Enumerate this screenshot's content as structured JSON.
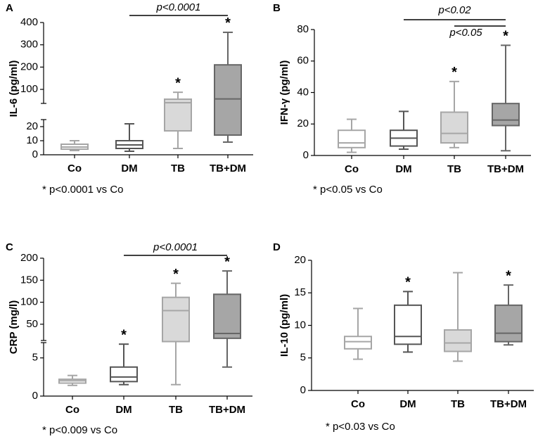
{
  "chart_data": [
    {
      "type": "box",
      "panel": "A",
      "ylabel": "IL-6 (pg/ml)",
      "categories": [
        "Co",
        "DM",
        "TB",
        "TB+DM"
      ],
      "segments": [
        {
          "ylim": [
            0,
            25
          ],
          "yticks": [
            0,
            10,
            20
          ]
        },
        {
          "ylim": [
            37,
            400
          ],
          "yticks": [
            100,
            200,
            300,
            400
          ]
        }
      ],
      "boxes": [
        {
          "whislo": 3,
          "q1": 4,
          "med": 5.5,
          "q3": 7.5,
          "whishi": 10,
          "fill": "#ffffff",
          "stroke": "#a6a6a6"
        },
        {
          "whislo": 2.5,
          "q1": 4.5,
          "med": 7,
          "q3": 10,
          "whishi": 22,
          "fill": "#ffffff",
          "stroke": "#555555"
        },
        {
          "whislo": 4.5,
          "q1": 17,
          "med": 40,
          "q3": 56,
          "whishi": 87,
          "fill": "#d9d9d9",
          "stroke": "#a6a6a6"
        },
        {
          "whislo": 9,
          "q1": 14,
          "med": 57,
          "q3": 210,
          "whishi": 356,
          "fill": "#a6a6a6",
          "stroke": "#666666"
        }
      ],
      "annotations": [
        {
          "text": "*",
          "category": 2
        },
        {
          "text": "*",
          "category": 3
        }
      ],
      "brackets": [
        {
          "text": "p<0.0001",
          "from": 1,
          "to": 3
        }
      ],
      "footnote": "* p<0.0001 vs Co"
    },
    {
      "type": "box",
      "panel": "B",
      "ylabel": "IFN-γ (pg/ml)",
      "categories": [
        "Co",
        "DM",
        "TB",
        "TB+DM"
      ],
      "ylim": [
        0,
        80
      ],
      "yticks": [
        0,
        20,
        40,
        60,
        80
      ],
      "boxes": [
        {
          "whislo": 2,
          "q1": 5,
          "med": 8,
          "q3": 16,
          "whishi": 23,
          "fill": "#ffffff",
          "stroke": "#a6a6a6"
        },
        {
          "whislo": 4,
          "q1": 6,
          "med": 11,
          "q3": 16,
          "whishi": 28,
          "fill": "#ffffff",
          "stroke": "#555555"
        },
        {
          "whislo": 5,
          "q1": 8,
          "med": 14,
          "q3": 27.5,
          "whishi": 47,
          "fill": "#d9d9d9",
          "stroke": "#a6a6a6"
        },
        {
          "whislo": 3,
          "q1": 19,
          "med": 22.5,
          "q3": 33,
          "whishi": 70,
          "fill": "#a6a6a6",
          "stroke": "#666666"
        }
      ],
      "annotations": [
        {
          "text": "*",
          "category": 2
        },
        {
          "text": "*",
          "category": 3
        }
      ],
      "brackets": [
        {
          "text": "p<0.02",
          "from": 1,
          "to": 3
        },
        {
          "text": "p<0.05",
          "from": 2,
          "to": 3
        }
      ],
      "footnote": "* p<0.05 vs Co"
    },
    {
      "type": "box",
      "panel": "C",
      "ylabel": "CRP (mg/l)",
      "categories": [
        "Co",
        "DM",
        "TB",
        "TB+DM"
      ],
      "segments": [
        {
          "ylim": [
            0,
            7
          ],
          "yticks": [
            0,
            5
          ]
        },
        {
          "ylim": [
            13,
            200
          ],
          "yticks": [
            50,
            100,
            150,
            200
          ]
        }
      ],
      "boxes": [
        {
          "whislo": 1.4,
          "q1": 1.7,
          "med": 2,
          "q3": 2.2,
          "whishi": 2.7,
          "fill": "#ffffff",
          "stroke": "#a6a6a6"
        },
        {
          "whislo": 1.5,
          "q1": 1.9,
          "med": 2.5,
          "q3": 3.8,
          "whishi": 6.8,
          "fill": "#ffffff",
          "stroke": "#555555"
        },
        {
          "whislo": 1.5,
          "q1": 10,
          "med": 81,
          "q3": 111,
          "whishi": 143,
          "fill": "#d9d9d9",
          "stroke": "#a6a6a6"
        },
        {
          "whislo": 3.8,
          "q1": 18,
          "med": 29,
          "q3": 118,
          "whishi": 171,
          "fill": "#a6a6a6",
          "stroke": "#666666"
        }
      ],
      "annotations": [
        {
          "text": "*",
          "category": 1
        },
        {
          "text": "*",
          "category": 2
        },
        {
          "text": "*",
          "category": 3
        }
      ],
      "brackets": [
        {
          "text": "p<0.0001",
          "from": 1,
          "to": 3
        }
      ],
      "footnote": "* p<0.009 vs Co"
    },
    {
      "type": "box",
      "panel": "D",
      "ylabel": "IL-10 (pg/ml)",
      "categories": [
        "Co",
        "DM",
        "TB",
        "TB+DM"
      ],
      "ylim": [
        0,
        20
      ],
      "yticks": [
        0,
        5,
        10,
        15,
        20
      ],
      "boxes": [
        {
          "whislo": 4.8,
          "q1": 6.4,
          "med": 7.5,
          "q3": 8.3,
          "whishi": 12.6,
          "fill": "#ffffff",
          "stroke": "#a6a6a6"
        },
        {
          "whislo": 5.9,
          "q1": 7.1,
          "med": 8.3,
          "q3": 13.1,
          "whishi": 15.2,
          "fill": "#ffffff",
          "stroke": "#555555"
        },
        {
          "whislo": 4.5,
          "q1": 6.0,
          "med": 7.3,
          "q3": 9.3,
          "whishi": 18.1,
          "fill": "#d9d9d9",
          "stroke": "#a6a6a6"
        },
        {
          "whislo": 7.0,
          "q1": 7.5,
          "med": 8.8,
          "q3": 13.1,
          "whishi": 16.2,
          "fill": "#a6a6a6",
          "stroke": "#666666"
        }
      ],
      "annotations": [
        {
          "text": "*",
          "category": 1
        },
        {
          "text": "*",
          "category": 3
        }
      ],
      "footnote": "* p<0.03 vs Co"
    }
  ]
}
